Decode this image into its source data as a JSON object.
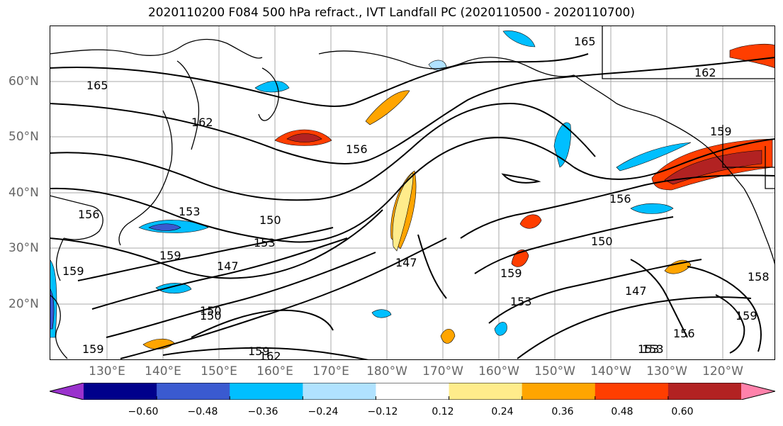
{
  "title": "2020110200 F084 500 hPa refract., IVT Landfall PC (2020110500 - 2020110700)",
  "longitude_labels": [
    "130°E",
    "140°E",
    "150°E",
    "160°E",
    "170°E",
    "180°W",
    "170°W",
    "160°W",
    "150°W",
    "140°W",
    "130°W",
    "120°W"
  ],
  "latitude_labels": [
    "60°N",
    "50°N",
    "40°N",
    "30°N",
    "20°N"
  ],
  "contour_labels": [
    "165",
    "162",
    "156",
    "153",
    "150",
    "159",
    "147",
    "150",
    "153",
    "156",
    "162",
    "159",
    "147",
    "159",
    "153",
    "147",
    "153",
    "156",
    "159",
    "150",
    "159",
    "156",
    "165",
    "162",
    "159",
    "153",
    "150",
    "158",
    "159"
  ],
  "colorbar": {
    "tick_labels": [
      "−0.60",
      "−0.48",
      "−0.36",
      "−0.24",
      "−0.12",
      "0.12",
      "0.24",
      "0.36",
      "0.48",
      "0.60"
    ],
    "colors": [
      "#9a32cd",
      "#00008b",
      "#3a5ad0",
      "#00bfff",
      "#b0e2ff",
      "#ffffff",
      "#ffec8b",
      "#ffa500",
      "#ff3e00",
      "#b22222",
      "#ff82ab"
    ]
  },
  "palette": {
    "coast": "#000000",
    "contour": "#000000",
    "grid": "#aaaaaa",
    "label": "#666666"
  }
}
